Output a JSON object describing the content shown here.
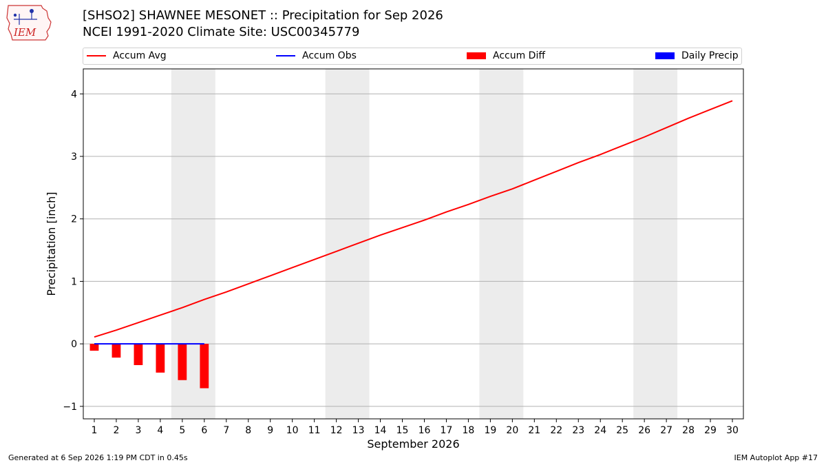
{
  "header": {
    "logo_text": "IEM",
    "title_line1": "[SHSO2] SHAWNEE MESONET :: Precipitation for Sep 2026",
    "title_line2": "NCEI 1991-2020 Climate Site: USC00345779"
  },
  "legend": {
    "placement": "top",
    "items": [
      {
        "label": "Accum Avg",
        "kind": "line",
        "color": "#ff0000"
      },
      {
        "label": "Accum Obs",
        "kind": "line",
        "color": "#0000ff"
      },
      {
        "label": "Accum Diff",
        "kind": "box",
        "color": "#ff0000"
      },
      {
        "label": "Daily Precip",
        "kind": "box",
        "color": "#0000ff"
      }
    ]
  },
  "chart_data": {
    "type": "line",
    "xlabel": "September 2026",
    "ylabel": "Precipitation [inch]",
    "xlim": [
      0.5,
      30.5
    ],
    "ylim": [
      -1.2,
      4.4
    ],
    "yticks": [
      -1,
      0,
      1,
      2,
      3,
      4
    ],
    "x_tick_labels": [
      "1",
      "2",
      "3",
      "4",
      "5",
      "6",
      "7",
      "8",
      "9",
      "10",
      "11",
      "12",
      "13",
      "14",
      "15",
      "16",
      "17",
      "18",
      "19",
      "20",
      "21",
      "22",
      "23",
      "24",
      "25",
      "26",
      "27",
      "28",
      "29",
      "30"
    ],
    "grid": "horizontal",
    "weekend_bands": [
      [
        5,
        6
      ],
      [
        12,
        13
      ],
      [
        19,
        20
      ],
      [
        26,
        27
      ]
    ],
    "weekend_color": "#ececec",
    "series": [
      {
        "name": "Accum Avg",
        "kind": "line",
        "color": "#ff0000",
        "x": [
          1,
          2,
          3,
          4,
          5,
          6,
          7,
          8,
          9,
          10,
          11,
          12,
          13,
          14,
          15,
          16,
          17,
          18,
          19,
          20,
          21,
          22,
          23,
          24,
          25,
          26,
          27,
          28,
          29,
          30
        ],
        "values": [
          0.11,
          0.22,
          0.34,
          0.46,
          0.58,
          0.71,
          0.83,
          0.96,
          1.09,
          1.22,
          1.35,
          1.48,
          1.61,
          1.74,
          1.86,
          1.98,
          2.11,
          2.23,
          2.36,
          2.48,
          2.62,
          2.76,
          2.9,
          3.03,
          3.17,
          3.31,
          3.46,
          3.61,
          3.75,
          3.89
        ]
      },
      {
        "name": "Accum Obs",
        "kind": "line",
        "color": "#0000ff",
        "x": [
          1,
          2,
          3,
          4,
          5,
          6
        ],
        "values": [
          0,
          0,
          0,
          0,
          0,
          0
        ]
      },
      {
        "name": "Accum Diff",
        "kind": "bar",
        "color": "#ff0000",
        "x": [
          1,
          2,
          3,
          4,
          5,
          6
        ],
        "values": [
          -0.11,
          -0.22,
          -0.34,
          -0.46,
          -0.58,
          -0.71
        ]
      },
      {
        "name": "Daily Precip",
        "kind": "bar",
        "color": "#0000ff",
        "x": [
          1,
          2,
          3,
          4,
          5,
          6
        ],
        "values": [
          0,
          0,
          0,
          0,
          0,
          0
        ]
      }
    ]
  },
  "footer": {
    "left": "Generated at 6 Sep 2026 1:19 PM CDT in 0.45s",
    "right": "IEM Autoplot App #17"
  }
}
